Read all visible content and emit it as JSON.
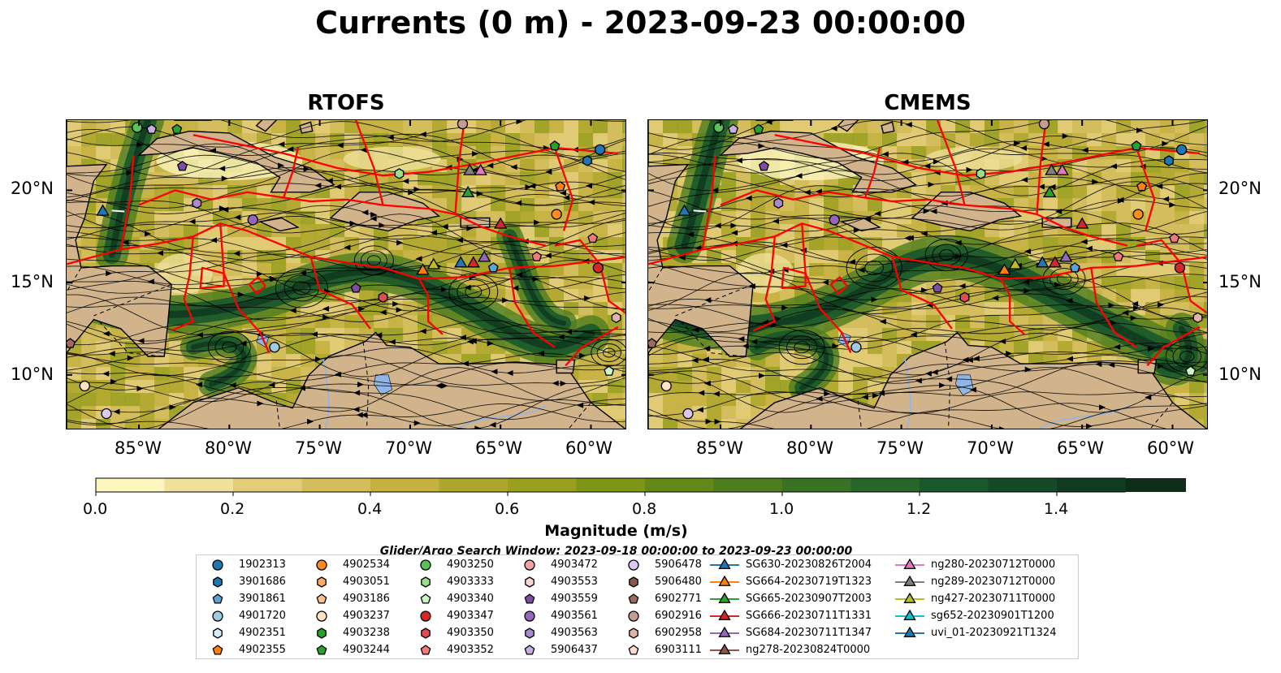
{
  "title": "Currents (0 m) - 2023-09-23 00:00:00",
  "panels": [
    {
      "title": "RTOFS",
      "seed": 11
    },
    {
      "title": "CMEMS",
      "seed": 29
    }
  ],
  "x_ticks": [
    "85°W",
    "80°W",
    "75°W",
    "70°W",
    "65°W",
    "60°W"
  ],
  "y_ticks": [
    "20°N",
    "15°N",
    "10°N"
  ],
  "colorbar": {
    "label": "Magnitude (m/s)",
    "ticks": [
      "0.0",
      "0.2",
      "0.4",
      "0.6",
      "0.8",
      "1.0",
      "1.2",
      "1.4"
    ],
    "min": 0.0,
    "max": 1.5,
    "step": 0.1,
    "colors": [
      "#fbf5be",
      "#efe09a",
      "#e2cd78",
      "#d4bd5c",
      "#c4b142",
      "#aea62c",
      "#98a01e",
      "#7e9617",
      "#64891a",
      "#4d7d1f",
      "#3a7225",
      "#27652a",
      "#1a582b",
      "#144a27",
      "#103b20",
      "#0d2d19"
    ]
  },
  "search_window": "Glider/Argo Search Window: 2023-09-18 00:00:00 to 2023-09-23 00:00:00",
  "map_colors": {
    "land": "#d2b48c",
    "eez": "#ff0000",
    "lakes": "#8fb6e6"
  },
  "legend": [
    {
      "label": "1902313",
      "marker": "circle",
      "color": "#1f77b4"
    },
    {
      "label": "3901686",
      "marker": "hexagon",
      "color": "#1f77b4"
    },
    {
      "label": "3901861",
      "marker": "pentagon",
      "color": "#5ba3d6"
    },
    {
      "label": "4901720",
      "marker": "circle",
      "color": "#9ecae1"
    },
    {
      "label": "4902351",
      "marker": "hexagon",
      "color": "#d6ecf8"
    },
    {
      "label": "4902355",
      "marker": "pentagon",
      "color": "#ff7f0e"
    },
    {
      "label": "4902534",
      "marker": "circle",
      "color": "#ff8c1a"
    },
    {
      "label": "4903051",
      "marker": "hexagon",
      "color": "#ffab66"
    },
    {
      "label": "4903186",
      "marker": "pentagon",
      "color": "#ffc08a"
    },
    {
      "label": "4903237",
      "marker": "circle",
      "color": "#ffe2c4"
    },
    {
      "label": "4903238",
      "marker": "hexagon",
      "color": "#2ca02c"
    },
    {
      "label": "4903244",
      "marker": "pentagon",
      "color": "#2ca02c"
    },
    {
      "label": "4903250",
      "marker": "circle",
      "color": "#57c257"
    },
    {
      "label": "4903333",
      "marker": "hexagon",
      "color": "#98df8a"
    },
    {
      "label": "4903340",
      "marker": "pentagon",
      "color": "#ccf5c4"
    },
    {
      "label": "4903347",
      "marker": "circle",
      "color": "#d62728"
    },
    {
      "label": "4903350",
      "marker": "hexagon",
      "color": "#e04b4b"
    },
    {
      "label": "4903352",
      "marker": "pentagon",
      "color": "#f07a7a"
    },
    {
      "label": "4903472",
      "marker": "circle",
      "color": "#f4a3a3"
    },
    {
      "label": "4903553",
      "marker": "hexagon",
      "color": "#fcd3d3"
    },
    {
      "label": "4903559",
      "marker": "pentagon",
      "color": "#7b4ea3"
    },
    {
      "label": "4903561",
      "marker": "circle",
      "color": "#9467bd"
    },
    {
      "label": "4903563",
      "marker": "hexagon",
      "color": "#a98ad1"
    },
    {
      "label": "5906437",
      "marker": "pentagon",
      "color": "#c5b0e0"
    },
    {
      "label": "5906478",
      "marker": "circle",
      "color": "#dcc7f0"
    },
    {
      "label": "5906480",
      "marker": "hexagon",
      "color": "#8c564b"
    },
    {
      "label": "6902771",
      "marker": "pentagon",
      "color": "#9c6a5f"
    },
    {
      "label": "6902916",
      "marker": "circle",
      "color": "#c49c94"
    },
    {
      "label": "6902958",
      "marker": "hexagon",
      "color": "#e0b4a8"
    },
    {
      "label": "6903111",
      "marker": "pentagon",
      "color": "#fcdccf"
    },
    {
      "label": "SG630-20230826T2004",
      "marker": "triangle-line",
      "color": "#1f77b4"
    },
    {
      "label": "SG664-20230719T1323",
      "marker": "triangle-line",
      "color": "#ff7f0e"
    },
    {
      "label": "SG665-20230907T2003",
      "marker": "triangle-line",
      "color": "#2ca02c"
    },
    {
      "label": "SG666-20230711T1331",
      "marker": "triangle-line",
      "color": "#d62728"
    },
    {
      "label": "SG684-20230711T1347",
      "marker": "triangle-line",
      "color": "#9467bd"
    },
    {
      "label": "ng278-20230824T0000",
      "marker": "triangle-line",
      "color": "#8c564b"
    },
    {
      "label": "ng280-20230712T0000",
      "marker": "triangle-line",
      "color": "#e377c2"
    },
    {
      "label": "ng289-20230712T0000",
      "marker": "triangle-line",
      "color": "#7f7f7f"
    },
    {
      "label": "ng427-20230711T0000",
      "marker": "triangle-line",
      "color": "#bcbd22"
    },
    {
      "label": "sg652-20230901T1200",
      "marker": "triangle-line",
      "color": "#17becf"
    },
    {
      "label": "uvi_01-20230921T1324",
      "marker": "triangle-line",
      "color": "#1f77b4"
    }
  ],
  "platforms": [
    {
      "id": "1902313",
      "lon": -59.5,
      "lat": 22.2
    },
    {
      "id": "3901686",
      "lon": -60.2,
      "lat": 21.6
    },
    {
      "id": "4903250",
      "lon": -85.1,
      "lat": 23.4
    },
    {
      "id": "4903244",
      "lon": -82.9,
      "lat": 23.3
    },
    {
      "id": "5906437",
      "lon": -84.3,
      "lat": 23.3
    },
    {
      "id": "4903559",
      "lon": -82.6,
      "lat": 21.3
    },
    {
      "id": "4903563",
      "lon": -81.8,
      "lat": 19.3
    },
    {
      "id": "4903561",
      "lon": -78.7,
      "lat": 18.4
    },
    {
      "id": "4903333",
      "lon": -70.6,
      "lat": 20.9
    },
    {
      "id": "6902916",
      "lon": -67.1,
      "lat": 23.6
    },
    {
      "id": "4903244",
      "lon": -62.0,
      "lat": 22.4
    },
    {
      "id": "4902355",
      "lon": -61.7,
      "lat": 20.2
    },
    {
      "id": "4902534",
      "lon": -61.9,
      "lat": 18.7
    },
    {
      "id": "4903352",
      "lon": -59.9,
      "lat": 17.4
    },
    {
      "id": "4903347",
      "lon": -59.6,
      "lat": 15.8
    },
    {
      "id": "6902958",
      "lon": -58.6,
      "lat": 13.1
    },
    {
      "id": "4903340",
      "lon": -59.0,
      "lat": 10.2
    },
    {
      "id": "4903352",
      "lon": -63.0,
      "lat": 16.4
    },
    {
      "id": "3901861",
      "lon": -65.4,
      "lat": 15.8
    },
    {
      "id": "4903350",
      "lon": -71.5,
      "lat": 14.2
    },
    {
      "id": "4903559",
      "lon": -73.0,
      "lat": 14.7
    },
    {
      "id": "4901720",
      "lon": -77.5,
      "lat": 11.5
    },
    {
      "id": "6902771",
      "lon": -88.8,
      "lat": 11.7
    },
    {
      "id": "4903237",
      "lon": -88.0,
      "lat": 9.4
    },
    {
      "id": "5906478",
      "lon": -86.8,
      "lat": 7.9
    }
  ],
  "gliders": [
    {
      "id": "SG630-20230826T2004",
      "lon": -87.0,
      "lat": 18.9
    },
    {
      "id": "SG664-20230719T1323",
      "lon": -69.3,
      "lat": 15.7
    },
    {
      "id": "ng427-20230711T0000",
      "lon": -68.7,
      "lat": 16.0
    },
    {
      "id": "SG630-20230826T2004",
      "lon": -67.2,
      "lat": 16.1
    },
    {
      "id": "SG666-20230711T1331",
      "lon": -66.5,
      "lat": 16.1
    },
    {
      "id": "SG684-20230711T1347",
      "lon": -65.9,
      "lat": 16.4
    },
    {
      "id": "SG665-20230907T2003",
      "lon": -66.8,
      "lat": 19.9
    },
    {
      "id": "ng289-20230712T0000",
      "lon": -66.7,
      "lat": 21.1
    },
    {
      "id": "ng280-20230712T0000",
      "lon": -66.1,
      "lat": 21.1
    },
    {
      "id": "SG666-20230711T1331",
      "lon": -65.0,
      "lat": 18.2
    }
  ],
  "extent": {
    "lon_min": -89.0,
    "lon_max": -58.0,
    "lat_min": 7.0,
    "lat_max": 23.8
  }
}
